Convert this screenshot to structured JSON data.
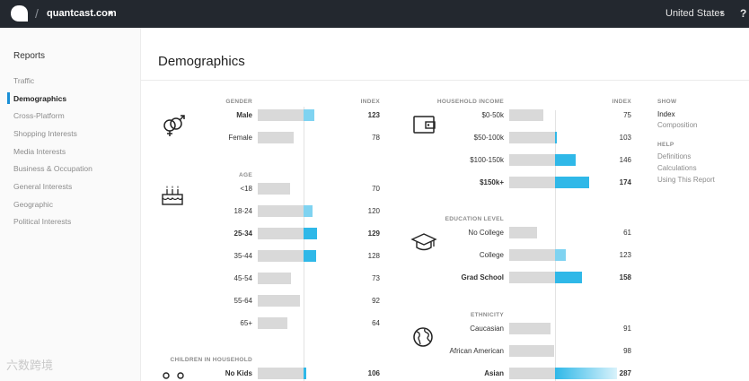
{
  "topbar": {
    "site": "quantcast.com",
    "site_caret": "▾",
    "country": "United States",
    "country_caret": "▾",
    "help": "?"
  },
  "sidebar": {
    "title": "Reports",
    "items": [
      {
        "label": "Traffic"
      },
      {
        "label": "Demographics"
      },
      {
        "label": "Cross-Platform"
      },
      {
        "label": "Shopping Interests"
      },
      {
        "label": "Media Interests"
      },
      {
        "label": "Business & Occupation"
      },
      {
        "label": "General Interests"
      },
      {
        "label": "Geographic"
      },
      {
        "label": "Political Interests"
      }
    ]
  },
  "page_title": "Demographics",
  "left": {
    "index_header": "INDEX",
    "gender": {
      "header": "GENDER",
      "rows": [
        {
          "label": "Male",
          "value": "123",
          "index": 123
        },
        {
          "label": "Female",
          "value": "78",
          "index": 78
        }
      ]
    },
    "age": {
      "header": "AGE",
      "rows": [
        {
          "label": "<18",
          "value": "70",
          "index": 70
        },
        {
          "label": "18-24",
          "value": "120",
          "index": 120
        },
        {
          "label": "25-34",
          "value": "129",
          "index": 129
        },
        {
          "label": "35-44",
          "value": "128",
          "index": 128
        },
        {
          "label": "45-54",
          "value": "73",
          "index": 73
        },
        {
          "label": "55-64",
          "value": "92",
          "index": 92
        },
        {
          "label": "65+",
          "value": "64",
          "index": 64
        }
      ]
    },
    "children": {
      "header": "CHILDREN IN HOUSEHOLD",
      "rows": [
        {
          "label": "No Kids",
          "value": "106",
          "index": 106
        }
      ]
    }
  },
  "right": {
    "index_header": "INDEX",
    "income": {
      "header": "HOUSEHOLD INCOME",
      "rows": [
        {
          "label": "$0-50k",
          "value": "75",
          "index": 75
        },
        {
          "label": "$50-100k",
          "value": "103",
          "index": 103
        },
        {
          "label": "$100-150k",
          "value": "146",
          "index": 146
        },
        {
          "label": "$150k+",
          "value": "174",
          "index": 174
        }
      ]
    },
    "education": {
      "header": "EDUCATION LEVEL",
      "rows": [
        {
          "label": "No College",
          "value": "61",
          "index": 61
        },
        {
          "label": "College",
          "value": "123",
          "index": 123
        },
        {
          "label": "Grad School",
          "value": "158",
          "index": 158
        }
      ]
    },
    "ethnicity": {
      "header": "ETHNICITY",
      "rows": [
        {
          "label": "Caucasian",
          "value": "91",
          "index": 91
        },
        {
          "label": "African American",
          "value": "98",
          "index": 98
        },
        {
          "label": "Asian",
          "value": "287",
          "index": 287
        }
      ]
    }
  },
  "options": {
    "show_header": "SHOW",
    "show_items": [
      "Index",
      "Composition"
    ],
    "help_header": "HELP",
    "help_items": [
      "Definitions",
      "Calculations",
      "Using This Report"
    ]
  },
  "colors": {
    "bar_gray": "#d9d9d9",
    "bar_blue": "#2fb8e8",
    "accent": "#1a8fd6"
  },
  "watermark": "六数跨境"
}
